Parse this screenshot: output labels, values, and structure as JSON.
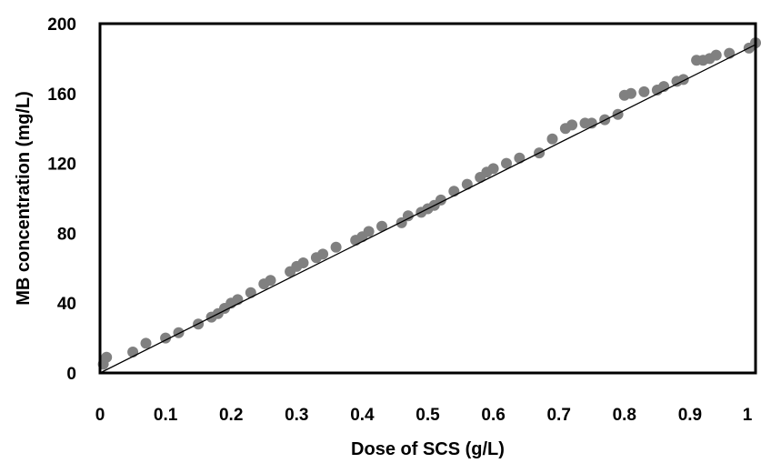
{
  "chart_data": {
    "type": "scatter",
    "title": "",
    "xlabel": "Dose of SCS (g/L)",
    "ylabel": "MB concentration (mg/L)",
    "xlim": [
      0,
      1
    ],
    "ylim": [
      0,
      200
    ],
    "xticks": [
      "0",
      "0.1",
      "0.2",
      "0.3",
      "0.4",
      "0.5",
      "0.6",
      "0.7",
      "0.8",
      "0.9",
      "1"
    ],
    "yticks": [
      "0",
      "40",
      "80",
      "120",
      "160",
      "200"
    ],
    "grid": false,
    "legend": "none",
    "marker_color": "#808080",
    "trendline": {
      "x": [
        0,
        1
      ],
      "y": [
        0,
        188
      ]
    },
    "series": [
      {
        "x": [
          0.005,
          0.01,
          0.05,
          0.07,
          0.1,
          0.12,
          0.15,
          0.17,
          0.18,
          0.19,
          0.2,
          0.21,
          0.23,
          0.25,
          0.26,
          0.29,
          0.3,
          0.31,
          0.33,
          0.34,
          0.36,
          0.39,
          0.4,
          0.41,
          0.43,
          0.46,
          0.47,
          0.49,
          0.5,
          0.51,
          0.52,
          0.54,
          0.56,
          0.58,
          0.59,
          0.6,
          0.62,
          0.64,
          0.67,
          0.69,
          0.71,
          0.72,
          0.74,
          0.75,
          0.77,
          0.79,
          0.8,
          0.81,
          0.83,
          0.85,
          0.86,
          0.88,
          0.89,
          0.91,
          0.92,
          0.93,
          0.94,
          0.96,
          0.99,
          1.0
        ],
        "y": [
          5,
          9,
          12,
          17,
          20,
          23,
          28,
          32,
          34,
          37,
          40,
          42,
          46,
          51,
          53,
          58,
          61,
          63,
          66,
          68,
          72,
          76,
          78,
          81,
          84,
          86,
          90,
          92,
          94,
          96,
          99,
          104,
          108,
          112,
          115,
          117,
          120,
          123,
          126,
          134,
          140,
          142,
          143,
          143,
          145,
          148,
          159,
          160,
          161,
          162,
          164,
          167,
          168,
          179,
          179,
          180,
          182,
          183,
          186,
          189
        ]
      }
    ]
  }
}
